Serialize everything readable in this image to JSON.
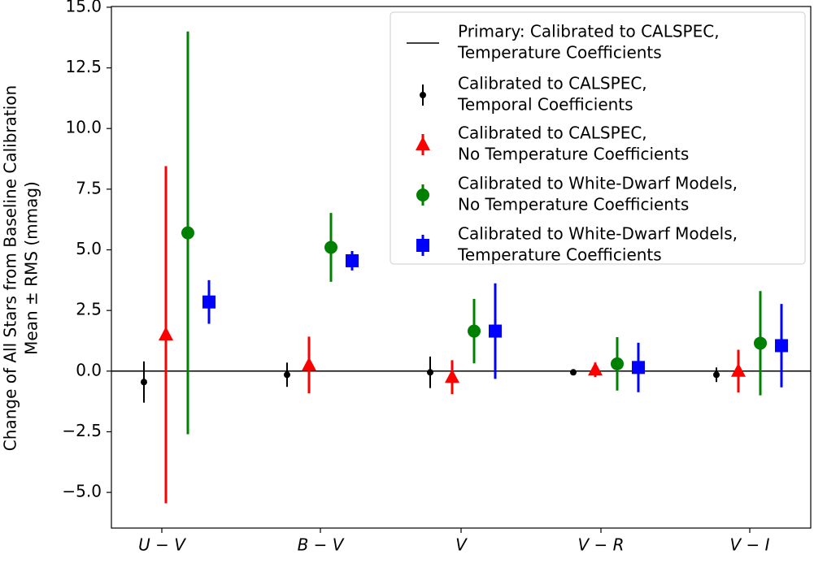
{
  "chart_data": {
    "type": "errorbar",
    "ylabel": [
      "Change of All Stars from Baseline Calibration",
      "Mean ± RMS (mmag)"
    ],
    "categories": [
      "U − V",
      "B − V",
      "V",
      "V − R",
      "V − I"
    ],
    "ylim": [
      -6.47,
      15.03
    ],
    "yticks": [
      {
        "value": 15,
        "label": "15.0"
      },
      {
        "value": 12.5,
        "label": "12.5"
      },
      {
        "value": 10,
        "label": "10.0"
      },
      {
        "value": 7.5,
        "label": "7.5"
      },
      {
        "value": 5,
        "label": "5.0"
      },
      {
        "value": 2.5,
        "label": "2.5"
      },
      {
        "value": 0,
        "label": "0.0"
      },
      {
        "value": -2.5,
        "label": "−2.5"
      },
      {
        "value": -5,
        "label": "−5.0"
      }
    ],
    "reference_line": {
      "name": [
        "Primary: Calibrated to CALSPEC,",
        "Temperature Coefficients"
      ],
      "value": 0,
      "color": "#000000"
    },
    "series": [
      {
        "name": [
          "Calibrated to CALSPEC,",
          "Temporal Coefficients"
        ],
        "color": "#000000",
        "marker": "circle",
        "size": "small",
        "values": [
          -0.45,
          -0.15,
          -0.05,
          -0.05,
          -0.15
        ],
        "errors": [
          0.85,
          0.5,
          0.65,
          0.05,
          0.3
        ]
      },
      {
        "name": [
          "Calibrated to CALSPEC,",
          "No Temperature Coefficients"
        ],
        "color": "#ff0000",
        "marker": "triangle",
        "size": "large",
        "values": [
          1.5,
          0.25,
          -0.25,
          0.05,
          0.0
        ],
        "errors": [
          6.95,
          1.17,
          0.7,
          0.3,
          0.88
        ]
      },
      {
        "name": [
          "Calibrated to White-Dwarf Models,",
          "No Temperature Coefficients"
        ],
        "color": "#008000",
        "marker": "circle",
        "size": "large",
        "values": [
          5.7,
          5.1,
          1.65,
          0.3,
          1.15
        ],
        "errors": [
          8.3,
          1.42,
          1.33,
          1.1,
          2.15
        ]
      },
      {
        "name": [
          "Calibrated to White-Dwarf Models,",
          "Temperature Coefficients"
        ],
        "color": "#0000ff",
        "marker": "square",
        "size": "large",
        "values": [
          2.85,
          4.55,
          1.65,
          0.15,
          1.05
        ],
        "errors": [
          0.9,
          0.4,
          1.97,
          1.02,
          1.72
        ]
      }
    ]
  }
}
